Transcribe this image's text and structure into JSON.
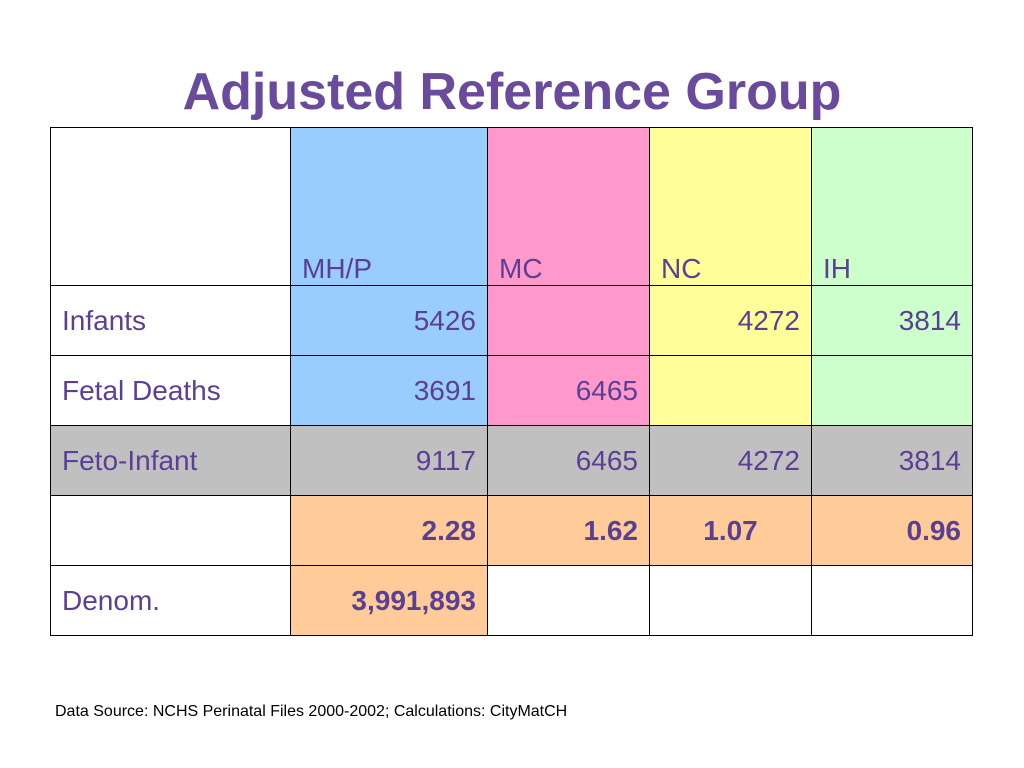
{
  "title": "Adjusted Reference Group",
  "columns": [
    "",
    "MH/P",
    "MC",
    "NC",
    "IH"
  ],
  "rows": [
    {
      "label": "Infants",
      "values": [
        "5426",
        "",
        "4272",
        "3814"
      ]
    },
    {
      "label": "Fetal Deaths",
      "values": [
        "3691",
        "6465",
        "",
        ""
      ]
    },
    {
      "label": "Feto-Infant",
      "values": [
        "9117",
        "6465",
        "4272",
        "3814"
      ]
    },
    {
      "label": "",
      "values": [
        "2.28",
        "1.62",
        "1.07",
        "0.96"
      ]
    },
    {
      "label": "Denom.",
      "values": [
        "3,991,893",
        "",
        "",
        ""
      ]
    }
  ],
  "colors": {
    "title": "#6a4a9c",
    "MH/P": "#99ccff",
    "MC": "#ff99cc",
    "NC": "#ffff99",
    "IH": "#ccffcc",
    "feto_infant_row": "#c0c0c0",
    "rate_row": "#ffcc99"
  },
  "source": "Data Source: NCHS Perinatal Files 2000-2002; Calculations: CityMatCH"
}
